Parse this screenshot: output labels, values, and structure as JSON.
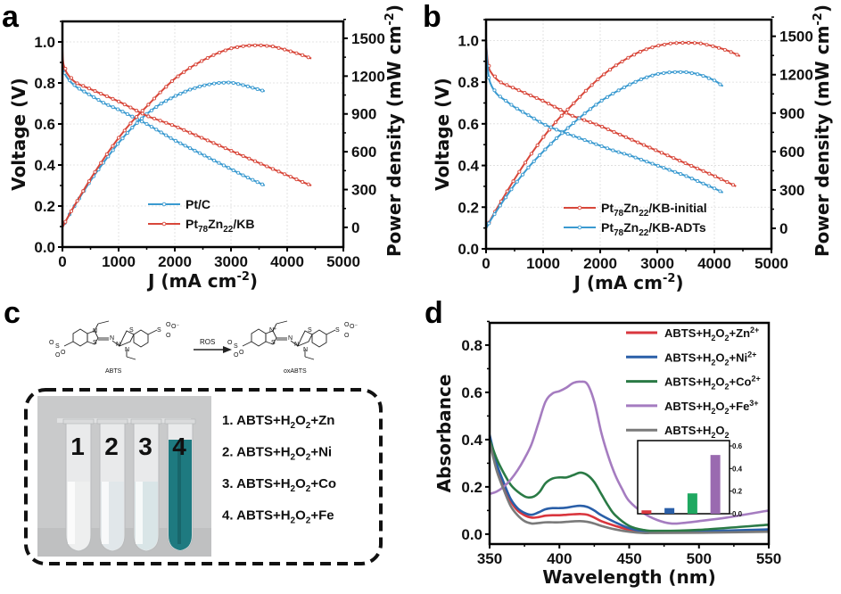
{
  "figure": {
    "panels": [
      "a",
      "b",
      "c",
      "d"
    ]
  },
  "colors": {
    "pt_c": "#3a9ad0",
    "ptzn_kb": "#d8473a",
    "zn": "#d9363e",
    "ni": "#2a5fa8",
    "co": "#2a7a45",
    "fe": "#a57cc0",
    "blank": "#7a7a7a",
    "inset_zn": "#d9363e",
    "inset_ni": "#2a5fa8",
    "inset_co": "#1fa860",
    "inset_fe": "#9a6ab0",
    "tube_clear": "#e6e9ea",
    "tube_teal": "#1e7a80"
  },
  "chart_data": [
    {
      "id": "a",
      "type": "line",
      "panel_label": "a",
      "xlabel": "J (mA cm",
      "xlabel_sup": "-2",
      "xlabel_end": ")",
      "ylabel": "Voltage (V)",
      "y2label": "Power density (mW cm",
      "y2label_sup": "-2",
      "y2label_end": ")",
      "xlim": [
        0,
        5000
      ],
      "ylim": [
        0,
        1.1
      ],
      "y2lim": [
        -156,
        1634
      ],
      "xticks": [
        0,
        1000,
        2000,
        3000,
        4000,
        5000
      ],
      "yticks": [
        0.0,
        0.2,
        0.4,
        0.6,
        0.8,
        1.0
      ],
      "y2ticks": [
        0,
        300,
        600,
        900,
        1200,
        1500
      ],
      "grid": true,
      "legend_position": "bottom-center",
      "series": [
        {
          "name": "Pt/C",
          "name_parts": [
            "Pt/C"
          ],
          "color_key": "pt_c",
          "voltage": {
            "x": [
              0,
              20,
              100,
              250,
              500,
              750,
              1000,
              1250,
              1500,
              1750,
              2000,
              2250,
              2500,
              2750,
              3000,
              3250,
              3600
            ],
            "y": [
              0.91,
              0.86,
              0.82,
              0.78,
              0.74,
              0.7,
              0.67,
              0.635,
              0.6,
              0.56,
              0.52,
              0.485,
              0.45,
              0.415,
              0.38,
              0.345,
              0.3
            ]
          },
          "power": {
            "x": [
              0,
              100,
              250,
              500,
              750,
              1000,
              1250,
              1500,
              1750,
              2000,
              2250,
              2500,
              2750,
              3000,
              3250,
              3600
            ],
            "y": [
              0,
              82,
              195,
              370,
              525,
              670,
              795,
              900,
              980,
              1040,
              1090,
              1125,
              1145,
              1150,
              1125,
              1080
            ]
          }
        },
        {
          "name": "Pt78Zn22/KB",
          "name_parts": [
            "Pt",
            "78",
            "Zn",
            "22",
            "/KB"
          ],
          "color_key": "ptzn_kb",
          "voltage": {
            "x": [
              0,
              20,
              100,
              250,
              500,
              750,
              1000,
              1250,
              1500,
              1750,
              2000,
              2250,
              2500,
              2750,
              3000,
              3250,
              3500,
              3750,
              4000,
              4250,
              4430
            ],
            "y": [
              0.96,
              0.89,
              0.84,
              0.8,
              0.77,
              0.74,
              0.71,
              0.675,
              0.64,
              0.615,
              0.59,
              0.56,
              0.53,
              0.5,
              0.47,
              0.44,
              0.41,
              0.38,
              0.35,
              0.32,
              0.3
            ]
          },
          "power": {
            "x": [
              0,
              100,
              250,
              500,
              750,
              1000,
              1250,
              1500,
              1750,
              2000,
              2250,
              2500,
              2750,
              3000,
              3250,
              3500,
              3750,
              4000,
              4250,
              4430
            ],
            "y": [
              0,
              84,
              200,
              385,
              555,
              710,
              845,
              960,
              1075,
              1180,
              1260,
              1325,
              1380,
              1420,
              1440,
              1445,
              1435,
              1405,
              1370,
              1340
            ]
          }
        }
      ]
    },
    {
      "id": "b",
      "type": "line",
      "panel_label": "b",
      "xlabel": "J (mA cm",
      "xlabel_sup": "-2",
      "xlabel_end": ")",
      "ylabel": "Voltage (V)",
      "y2label": "Power density (mW cm",
      "y2label_sup": "-2",
      "y2label_end": ")",
      "xlim": [
        0,
        5000
      ],
      "ylim": [
        0,
        1.1
      ],
      "y2lim": [
        -160,
        1630
      ],
      "xticks": [
        0,
        1000,
        2000,
        3000,
        4000,
        5000
      ],
      "yticks": [
        0.0,
        0.2,
        0.4,
        0.6,
        0.8,
        1.0
      ],
      "y2ticks": [
        0,
        300,
        600,
        900,
        1200,
        1500
      ],
      "grid": true,
      "legend_position": "bottom-center",
      "series": [
        {
          "name": "Pt78Zn22/KB-initial",
          "name_parts": [
            "Pt",
            "78",
            "Zn",
            "22",
            "/KB-initial"
          ],
          "color_key": "ptzn_kb",
          "voltage": {
            "x": [
              0,
              30,
              80,
              250,
              500,
              750,
              1000,
              1250,
              1500,
              1750,
              2000,
              2250,
              2500,
              2750,
              3000,
              3250,
              3500,
              3750,
              4000,
              4380
            ],
            "y": [
              1.0,
              0.9,
              0.85,
              0.8,
              0.77,
              0.74,
              0.71,
              0.675,
              0.64,
              0.615,
              0.59,
              0.56,
              0.53,
              0.5,
              0.47,
              0.44,
              0.41,
              0.38,
              0.35,
              0.3
            ]
          },
          "power": {
            "x": [
              0,
              100,
              250,
              500,
              750,
              1000,
              1250,
              1500,
              1750,
              2000,
              2250,
              2500,
              2750,
              3000,
              3250,
              3500,
              3750,
              4000,
              4250,
              4450
            ],
            "y": [
              0,
              85,
              200,
              385,
              555,
              710,
              845,
              960,
              1075,
              1180,
              1265,
              1335,
              1390,
              1425,
              1445,
              1450,
              1445,
              1420,
              1385,
              1345
            ]
          }
        },
        {
          "name": "Pt78Zn22/KB-ADTs",
          "name_parts": [
            "Pt",
            "78",
            "Zn",
            "22",
            "/KB-ADTs"
          ],
          "color_key": "pt_c",
          "voltage": {
            "x": [
              0,
              20,
              50,
              100,
              200,
              350,
              500,
              750,
              1000,
              1250,
              1500,
              1750,
              2000,
              2250,
              2500,
              2750,
              3000,
              3250,
              3500,
              3750,
              4000,
              4150
            ],
            "y": [
              1.0,
              0.9,
              0.82,
              0.78,
              0.74,
              0.71,
              0.68,
              0.64,
              0.6,
              0.57,
              0.545,
              0.52,
              0.495,
              0.47,
              0.45,
              0.425,
              0.4,
              0.375,
              0.35,
              0.32,
              0.29,
              0.27
            ]
          },
          "power": {
            "x": [
              0,
              100,
              250,
              500,
              750,
              1000,
              1250,
              1500,
              1750,
              2000,
              2250,
              2500,
              2750,
              3000,
              3250,
              3500,
              3750,
              4000,
              4150
            ],
            "y": [
              0,
              78,
              180,
              340,
              480,
              600,
              710,
              810,
              905,
              990,
              1060,
              1120,
              1170,
              1205,
              1220,
              1220,
              1200,
              1155,
              1110
            ]
          }
        }
      ]
    },
    {
      "id": "d",
      "type": "line",
      "panel_label": "d",
      "xlabel": "Wavelength (nm)",
      "ylabel": "Absorbance",
      "xlim": [
        350,
        550
      ],
      "ylim": [
        -0.042,
        0.894
      ],
      "xticks": [
        350,
        400,
        450,
        500,
        550
      ],
      "yticks": [
        0.0,
        0.2,
        0.4,
        0.6,
        0.8
      ],
      "grid": false,
      "legend_position": "top-right",
      "series": [
        {
          "name": "ABTS+H2O2+Zn2+",
          "label_parts": [
            "ABTS+H",
            "2",
            "O",
            "2",
            "+Zn",
            "2+"
          ],
          "color_key": "zn",
          "x": [
            350,
            355,
            360,
            365,
            370,
            375,
            380,
            385,
            390,
            395,
            400,
            405,
            410,
            415,
            420,
            425,
            430,
            440,
            450,
            460,
            470,
            500,
            550
          ],
          "y": [
            0.4,
            0.28,
            0.2,
            0.14,
            0.1,
            0.08,
            0.07,
            0.072,
            0.078,
            0.08,
            0.08,
            0.082,
            0.084,
            0.085,
            0.082,
            0.07,
            0.055,
            0.035,
            0.018,
            0.01,
            0.008,
            0.008,
            0.012
          ]
        },
        {
          "name": "ABTS+H2O2+Ni2+",
          "label_parts": [
            "ABTS+H",
            "2",
            "O",
            "2",
            "+Ni",
            "2+"
          ],
          "color_key": "ni",
          "x": [
            350,
            355,
            360,
            365,
            370,
            375,
            380,
            385,
            390,
            395,
            400,
            405,
            410,
            415,
            420,
            425,
            430,
            440,
            450,
            460,
            470,
            500,
            550
          ],
          "y": [
            0.42,
            0.3,
            0.22,
            0.15,
            0.11,
            0.09,
            0.082,
            0.092,
            0.105,
            0.11,
            0.11,
            0.112,
            0.117,
            0.12,
            0.115,
            0.1,
            0.08,
            0.05,
            0.025,
            0.012,
            0.01,
            0.012,
            0.02
          ]
        },
        {
          "name": "ABTS+H2O2+Co2+",
          "label_parts": [
            "ABTS+H",
            "2",
            "O",
            "2",
            "+Co",
            "2+"
          ],
          "color_key": "co",
          "x": [
            350,
            355,
            360,
            365,
            370,
            375,
            378,
            382,
            386,
            390,
            395,
            400,
            405,
            410,
            415,
            420,
            425,
            430,
            435,
            440,
            450,
            460,
            470,
            500,
            550
          ],
          "y": [
            0.4,
            0.32,
            0.26,
            0.21,
            0.18,
            0.16,
            0.155,
            0.16,
            0.18,
            0.215,
            0.235,
            0.24,
            0.24,
            0.25,
            0.26,
            0.25,
            0.22,
            0.17,
            0.12,
            0.08,
            0.035,
            0.018,
            0.014,
            0.018,
            0.04
          ]
        },
        {
          "name": "ABTS+H2O2+Fe3+",
          "label_parts": [
            "ABTS+H",
            "2",
            "O",
            "2",
            "+Fe",
            "3+"
          ],
          "color_key": "fe",
          "x": [
            350,
            355,
            360,
            365,
            370,
            375,
            380,
            385,
            390,
            395,
            400,
            405,
            410,
            415,
            420,
            425,
            430,
            435,
            440,
            445,
            450,
            460,
            470,
            480,
            490,
            500,
            520,
            550
          ],
          "y": [
            0.17,
            0.18,
            0.2,
            0.23,
            0.27,
            0.32,
            0.38,
            0.47,
            0.56,
            0.595,
            0.605,
            0.62,
            0.64,
            0.645,
            0.635,
            0.56,
            0.43,
            0.33,
            0.25,
            0.19,
            0.14,
            0.09,
            0.06,
            0.045,
            0.048,
            0.055,
            0.07,
            0.1
          ]
        },
        {
          "name": "ABTS+H2O2",
          "label_parts": [
            "ABTS+H",
            "2",
            "O",
            "2",
            "",
            ""
          ],
          "color_key": "blank",
          "x": [
            350,
            355,
            360,
            365,
            370,
            375,
            380,
            385,
            390,
            395,
            400,
            405,
            410,
            415,
            420,
            425,
            430,
            440,
            450,
            460,
            470,
            500,
            550
          ],
          "y": [
            0.39,
            0.27,
            0.19,
            0.12,
            0.08,
            0.055,
            0.045,
            0.047,
            0.05,
            0.05,
            0.05,
            0.052,
            0.054,
            0.055,
            0.052,
            0.045,
            0.035,
            0.02,
            0.01,
            0.005,
            0.005,
            0.006,
            0.01
          ]
        }
      ],
      "inset": {
        "type": "bar",
        "categories": [
          "Zn2+",
          "Ni2+",
          "Co2+",
          "Fe3+"
        ],
        "values": [
          0.03,
          0.05,
          0.18,
          0.52
        ],
        "color_keys": [
          "inset_zn",
          "inset_ni",
          "inset_co",
          "inset_fe"
        ],
        "ylim": [
          0,
          0.6
        ],
        "yticks": [
          "0.0",
          "0.2",
          "0.4",
          "0.6"
        ],
        "ytick_values": [
          0.0,
          0.2,
          0.4,
          0.6
        ],
        "yaxis_side": "right"
      }
    }
  ],
  "panel_c": {
    "panel_label": "c",
    "reaction": {
      "reactant_label": "ABTS",
      "product_label": "oxABTS",
      "arrow_label": "ROS"
    },
    "tubes": [
      {
        "number": "1",
        "color_key": "tube_clear",
        "tint": "#eef0f0"
      },
      {
        "number": "2",
        "color_key": "tube_clear",
        "tint": "#dfe6ea"
      },
      {
        "number": "3",
        "color_key": "tube_clear",
        "tint": "#d6e4e6"
      },
      {
        "number": "4",
        "color_key": "tube_teal",
        "tint": "#1e7a80"
      }
    ],
    "list": [
      {
        "prefix": "1. ABTS+H",
        "sub1": "2",
        "mid": "O",
        "sub2": "2",
        "suffix": "+Zn"
      },
      {
        "prefix": "2. ABTS+H",
        "sub1": "2",
        "mid": "O",
        "sub2": "2",
        "suffix": "+Ni"
      },
      {
        "prefix": "3. ABTS+H",
        "sub1": "2",
        "mid": "O",
        "sub2": "2",
        "suffix": "+Co"
      },
      {
        "prefix": "4. ABTS+H",
        "sub1": "2",
        "mid": "O",
        "sub2": "2",
        "suffix": "+Fe"
      }
    ]
  }
}
